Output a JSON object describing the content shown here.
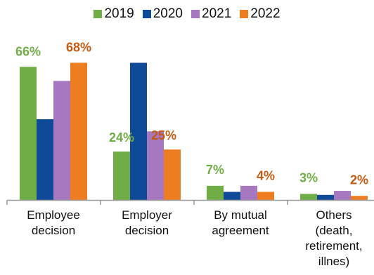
{
  "chart_data": {
    "type": "bar",
    "categories": [
      [
        "Employee",
        "decision"
      ],
      [
        "Employer",
        "decision"
      ],
      [
        "By mutual",
        "agreement"
      ],
      [
        "Others",
        "(death,",
        "retirement,",
        "illnes)"
      ]
    ],
    "series": [
      {
        "name": "2019",
        "color": "#70ad47",
        "values": [
          66,
          24,
          7,
          3
        ]
      },
      {
        "name": "2020",
        "color": "#0f4a99",
        "values": [
          40,
          68,
          4,
          2.5
        ]
      },
      {
        "name": "2021",
        "color": "#a678c0",
        "values": [
          59,
          34,
          7,
          4.5
        ]
      },
      {
        "name": "2022",
        "color": "#ee7d22",
        "values": [
          68,
          25,
          4,
          2
        ]
      }
    ],
    "data_labels": [
      {
        "category": 0,
        "series": "2019",
        "text": "66%",
        "color": "#70ad47"
      },
      {
        "category": 0,
        "series": "2022",
        "text": "68%",
        "color": "#c45a11"
      },
      {
        "category": 1,
        "series": "2019",
        "text": "24%",
        "color": "#70ad47"
      },
      {
        "category": 1,
        "series": "2022",
        "text": "25%",
        "color": "#c45a11"
      },
      {
        "category": 2,
        "series": "2019",
        "text": "7%",
        "color": "#70ad47"
      },
      {
        "category": 2,
        "series": "2022",
        "text": "4%",
        "color": "#c45a11"
      },
      {
        "category": 3,
        "series": "2019",
        "text": "3%",
        "color": "#70ad47"
      },
      {
        "category": 3,
        "series": "2022",
        "text": "2%",
        "color": "#c45a11"
      }
    ],
    "ylim": [
      0,
      72
    ],
    "grid": false,
    "legend_position": "top-center"
  }
}
